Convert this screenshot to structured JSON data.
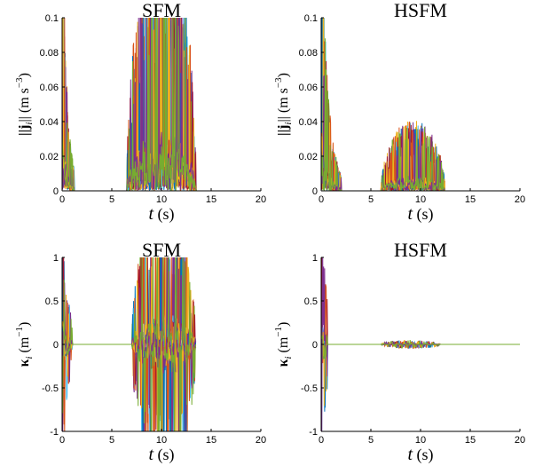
{
  "figure": {
    "palette": [
      "#0072BD",
      "#D95319",
      "#EDB120",
      "#7E2F8E",
      "#77AC30",
      "#4DBEEE",
      "#A2142F"
    ]
  },
  "chart_data": [
    {
      "type": "line",
      "title": "SFM",
      "xlabel_var": "t",
      "xlabel_unit": " (s)",
      "ylabel_var": "||j",
      "ylabel_sub": "i",
      "ylabel_rest": "|| (m s",
      "ylabel_sup": "−3",
      "ylabel_close": ")",
      "xlim": [
        0,
        20
      ],
      "ylim": [
        0,
        0.1
      ],
      "xticks": [
        "0",
        "5",
        "10",
        "15",
        "20"
      ],
      "yticks": [
        "0",
        "0.02",
        "0.04",
        "0.06",
        "0.08",
        "0.1"
      ],
      "ytick_values": [
        0,
        0.02,
        0.04,
        0.06,
        0.08,
        0.1
      ],
      "grid": false,
      "series_description": "noisy non-negative signals per agent: large spikes near t=0–1, near-zero 1–6 s, bursts up to ≥0.1 between t≈6 and 14 s, then zero",
      "bursts": [
        {
          "t0": 0.0,
          "t1": 1.2,
          "amp": 0.1,
          "decay": 0.5
        },
        {
          "t0": 6.5,
          "t1": 13.5,
          "amp": 0.1,
          "decay": 0
        }
      ]
    },
    {
      "type": "line",
      "title": "HSFM",
      "xlabel_var": "t",
      "xlabel_unit": " (s)",
      "ylabel_var": "||j",
      "ylabel_sub": "i",
      "ylabel_rest": "|| (m s",
      "ylabel_sup": "−3",
      "ylabel_close": ")",
      "xlim": [
        0,
        20
      ],
      "ylim": [
        0,
        0.1
      ],
      "xticks": [
        "0",
        "5",
        "10",
        "15",
        "20"
      ],
      "yticks": [
        "0",
        "0.02",
        "0.04",
        "0.06",
        "0.08",
        "0.1"
      ],
      "ytick_values": [
        0,
        0.02,
        0.04,
        0.06,
        0.08,
        0.1
      ],
      "grid": false,
      "series_description": "spikes near t=0–2 up to 0.1, small bursts ≤0.025 between t≈6 and 12.5 s",
      "bursts": [
        {
          "t0": 0.0,
          "t1": 2.0,
          "amp": 0.1,
          "decay": 0.7
        },
        {
          "t0": 6.0,
          "t1": 12.5,
          "amp": 0.025,
          "decay": 0
        }
      ]
    },
    {
      "type": "line",
      "title": "SFM",
      "xlabel_var": "t",
      "xlabel_unit": " (s)",
      "ylabel_var": "κ",
      "ylabel_sub": "i",
      "ylabel_rest": " (m",
      "ylabel_sup": "−1",
      "ylabel_close": ")",
      "xlim": [
        0,
        20
      ],
      "ylim": [
        -1,
        1
      ],
      "xticks": [
        "0",
        "5",
        "10",
        "15",
        "20"
      ],
      "yticks": [
        "-1",
        "-0.5",
        "0",
        "0.5",
        "1"
      ],
      "ytick_values": [
        -1,
        -0.5,
        0,
        0.5,
        1
      ],
      "grid": false,
      "series_description": "signed curvature per agent: oscillations near t=0–1 reaching ±1, near zero elsewhere, large oscillations ±1 between t≈7 and 13.5 s",
      "bursts": [
        {
          "t0": 0.0,
          "t1": 1.0,
          "amp": 1.0,
          "decay": 0.6
        },
        {
          "t0": 7.0,
          "t1": 13.5,
          "amp": 1.0,
          "decay": 0
        }
      ]
    },
    {
      "type": "line",
      "title": "HSFM",
      "xlabel_var": "t",
      "xlabel_unit": " (s)",
      "ylabel_var": "κ",
      "ylabel_sub": "i",
      "ylabel_rest": " (m",
      "ylabel_sup": "−1",
      "ylabel_close": ")",
      "xlim": [
        0,
        20
      ],
      "ylim": [
        -1,
        1
      ],
      "xticks": [
        "0",
        "5",
        "10",
        "15",
        "20"
      ],
      "yticks": [
        "-1",
        "-0.5",
        "0",
        "0.5",
        "1"
      ],
      "ytick_values": [
        -1,
        -0.5,
        0,
        0.5,
        1
      ],
      "grid": false,
      "series_description": "curvature spikes to ±1 near t≈0–0.6 s, tiny fluctuations (±0.03) between t≈6 and 12 s, otherwise zero",
      "bursts": [
        {
          "t0": 0.0,
          "t1": 0.6,
          "amp": 1.0,
          "decay": 0.6
        },
        {
          "t0": 6.0,
          "t1": 12.0,
          "amp": 0.03,
          "decay": 0
        }
      ]
    }
  ]
}
